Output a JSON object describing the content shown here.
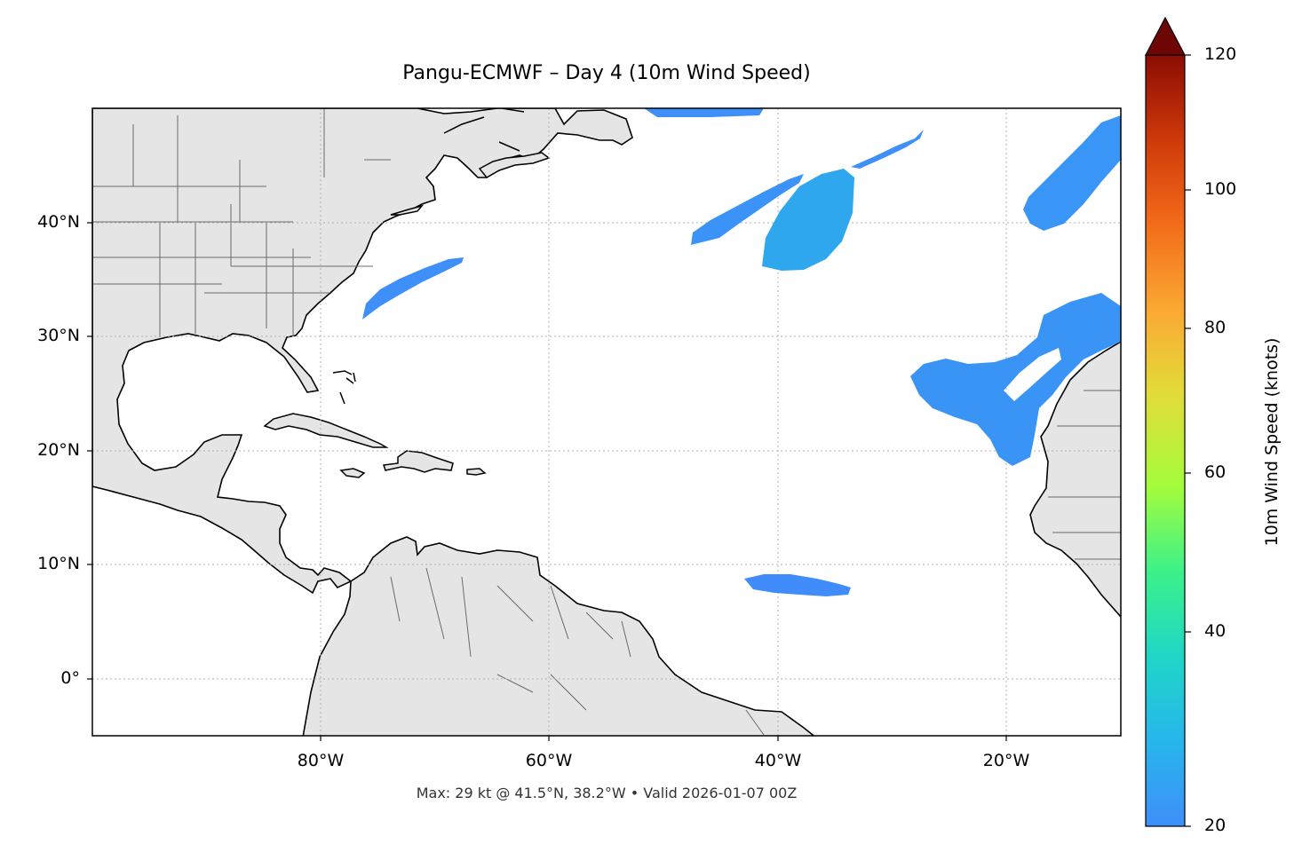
{
  "title": "Pangu-ECMWF – Day 4 (10m Wind Speed)",
  "footer": "Max: 29 kt @ 41.5°N, 38.2°W • Valid 2026-01-07 00Z",
  "map": {
    "extent": {
      "lon": [
        -100,
        -10
      ],
      "lat": [
        -5,
        50
      ]
    },
    "land_color": "#e5e5e5",
    "ocean_color": "#ffffff",
    "gridlines": "dotted",
    "lat_ticks": [
      {
        "value": 40,
        "label": "40°N"
      },
      {
        "value": 30,
        "label": "30°N"
      },
      {
        "value": 20,
        "label": "20°N"
      },
      {
        "value": 10,
        "label": "10°N"
      },
      {
        "value": 0,
        "label": "0°"
      }
    ],
    "lon_ticks": [
      {
        "value": -80,
        "label": "80°W"
      },
      {
        "value": -60,
        "label": "60°W"
      },
      {
        "value": -40,
        "label": "40°W"
      },
      {
        "value": -20,
        "label": "20°W"
      }
    ]
  },
  "wind_fields": [
    {
      "name": "off-us-east-coast",
      "color": "#3f8ff9"
    },
    {
      "name": "north-atlantic-west",
      "color": "#3b93f7"
    },
    {
      "name": "north-atlantic-max",
      "color": "#2fa7ee"
    },
    {
      "name": "northeast-atlantic",
      "color": "#3a96f6"
    },
    {
      "name": "azores-canaries",
      "color": "#3a94f6"
    },
    {
      "name": "tropical-atlantic",
      "color": "#408cfb"
    },
    {
      "name": "newfoundland-strip",
      "color": "#3f8ff9"
    }
  ],
  "colorbar": {
    "label": "10m Wind Speed (knots)",
    "min": 20,
    "max": 120,
    "extend": "max",
    "colormap": "turbo",
    "ticks": [
      {
        "value": 120,
        "label": "120"
      },
      {
        "value": 100,
        "label": "100"
      },
      {
        "value": 80,
        "label": "80"
      },
      {
        "value": 60,
        "label": "60"
      },
      {
        "value": 40,
        "label": "40"
      },
      {
        "value": 20,
        "label": "20"
      }
    ],
    "colors": [
      "#3f8ff9",
      "#22c4e4",
      "#27ee9a",
      "#a4fc3c",
      "#e2dc38",
      "#fba833",
      "#f26c1a",
      "#cf390a",
      "#9c1602",
      "#6f0606"
    ]
  }
}
